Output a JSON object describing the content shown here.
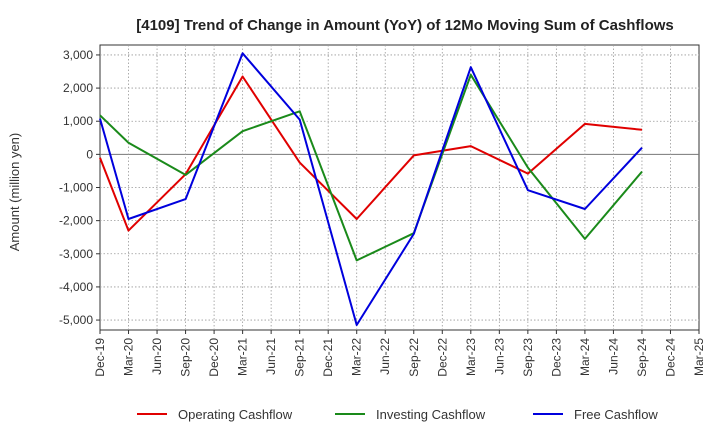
{
  "chart_data": {
    "type": "line",
    "title": "[4109]  Trend of Change in Amount (YoY) of 12Mo Moving Sum of Cashflows",
    "xlabel": "",
    "ylabel": "Amount (million yen)",
    "ylim": [
      -5300,
      3300
    ],
    "yticks": [
      3000,
      2000,
      1000,
      0,
      -1000,
      -2000,
      -3000,
      -4000,
      -5000
    ],
    "ytick_labels": [
      "3,000",
      "2,000",
      "1,000",
      "0",
      "-1,000",
      "-2,000",
      "-3,000",
      "-4,000",
      "-5,000"
    ],
    "categories": [
      "Dec-19",
      "Mar-20",
      "Jun-20",
      "Sep-20",
      "Dec-20",
      "Mar-21",
      "Jun-21",
      "Sep-21",
      "Dec-21",
      "Mar-22",
      "Jun-22",
      "Sep-22",
      "Dec-22",
      "Mar-23",
      "Jun-23",
      "Sep-23",
      "Dec-23",
      "Mar-24",
      "Jun-24",
      "Sep-24",
      "Dec-24",
      "Mar-25"
    ],
    "grid": true,
    "legend_position": "bottom",
    "series": [
      {
        "name": "Operating Cashflow",
        "color": "#e00000",
        "values": [
          -100,
          -2300,
          null,
          -600,
          null,
          2350,
          null,
          -250,
          null,
          -1950,
          null,
          -30,
          null,
          250,
          null,
          -580,
          null,
          920,
          null,
          740,
          null,
          null
        ]
      },
      {
        "name": "Investing Cashflow",
        "color": "#1a8a1a",
        "values": [
          1180,
          350,
          null,
          -620,
          null,
          700,
          null,
          1300,
          null,
          -3200,
          null,
          -2380,
          null,
          2400,
          null,
          -400,
          null,
          -2550,
          null,
          -520,
          null,
          null
        ]
      },
      {
        "name": "Free Cashflow",
        "color": "#0000dd",
        "values": [
          1080,
          -1950,
          null,
          -1350,
          null,
          3050,
          null,
          1050,
          null,
          -5150,
          null,
          -2400,
          null,
          2630,
          null,
          -1080,
          null,
          -1650,
          null,
          200,
          null,
          null
        ]
      }
    ]
  }
}
